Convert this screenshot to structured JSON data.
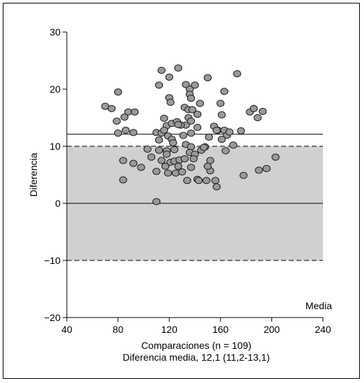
{
  "chart_data": {
    "type": "scatter",
    "xlabel": "Comparaciones (n = 109)",
    "xlabel_line2": "Diferencia media, 12,1 (11,2-13,1)",
    "ylabel": "Diferencia",
    "xlim": [
      40,
      240
    ],
    "ylim": [
      -20,
      30
    ],
    "xticks": [
      "40",
      "80",
      "120",
      "160",
      "200",
      "240"
    ],
    "yticks": [
      "30",
      "20",
      "10",
      "0",
      "−10",
      "−20"
    ],
    "mean_line_label": "Media",
    "mean_difference": 12.1,
    "shaded_band": [
      -10,
      10
    ],
    "zero_line": 0,
    "grid": false,
    "colors": {
      "point_fill": "#999999",
      "point_stroke": "#1a1a1a",
      "band_fill": "#d0d0d0"
    },
    "points": [
      [
        70,
        17.0
      ],
      [
        75,
        16.6
      ],
      [
        80,
        19.5
      ],
      [
        79,
        14.4
      ],
      [
        85,
        15.1
      ],
      [
        88,
        16.0
      ],
      [
        93,
        16.0
      ],
      [
        80,
        12.3
      ],
      [
        86,
        12.8
      ],
      [
        92,
        12.4
      ],
      [
        84,
        7.5
      ],
      [
        84,
        4.1
      ],
      [
        92,
        7.0
      ],
      [
        98,
        6.3
      ],
      [
        103,
        9.5
      ],
      [
        106,
        8.1
      ],
      [
        110,
        5.6
      ],
      [
        110,
        12.4
      ],
      [
        112,
        11.1
      ],
      [
        112,
        9.3
      ],
      [
        114,
        12.3
      ],
      [
        112,
        20.7
      ],
      [
        114,
        23.3
      ],
      [
        120,
        22.1
      ],
      [
        127,
        23.7
      ],
      [
        120,
        18.5
      ],
      [
        121,
        17.7
      ],
      [
        116,
        14.9
      ],
      [
        118,
        13.6
      ],
      [
        122,
        14.0
      ],
      [
        126,
        14.3
      ],
      [
        116,
        12.8
      ],
      [
        119,
        11.8
      ],
      [
        122,
        11.2
      ],
      [
        118,
        9.2
      ],
      [
        114,
        7.5
      ],
      [
        117,
        6.5
      ],
      [
        121,
        7.2
      ],
      [
        124,
        7.4
      ],
      [
        127,
        6.5
      ],
      [
        128,
        7.6
      ],
      [
        125,
        5.3
      ],
      [
        119,
        5.3
      ],
      [
        130,
        5.5
      ],
      [
        132,
        7.8
      ],
      [
        131,
        11.9
      ],
      [
        133,
        13.7
      ],
      [
        129,
        13.7
      ],
      [
        132,
        16.8
      ],
      [
        135,
        16.4
      ],
      [
        135,
        15.0
      ],
      [
        137,
        14.4
      ],
      [
        138,
        16.4
      ],
      [
        142,
        15.6
      ],
      [
        133,
        20.8
      ],
      [
        136,
        20.0
      ],
      [
        136,
        19.1
      ],
      [
        137,
        18.4
      ],
      [
        140,
        20.7
      ],
      [
        150,
        22.0
      ],
      [
        144,
        17.5
      ],
      [
        142,
        13.3
      ],
      [
        137,
        12.3
      ],
      [
        133,
        10.3
      ],
      [
        137,
        9.9
      ],
      [
        136,
        8.9
      ],
      [
        140,
        8.6
      ],
      [
        145,
        9.3
      ],
      [
        148,
        9.9
      ],
      [
        147,
        9.8
      ],
      [
        139,
        7.8
      ],
      [
        137,
        6.3
      ],
      [
        134,
        4.0
      ],
      [
        142,
        4.2
      ],
      [
        149,
        4.0
      ],
      [
        152,
        5.7
      ],
      [
        152,
        7.5
      ],
      [
        156,
        4.0
      ],
      [
        157,
        2.9
      ],
      [
        151,
        11.6
      ],
      [
        155,
        13.5
      ],
      [
        158,
        12.8
      ],
      [
        161,
        15.5
      ],
      [
        160,
        17.5
      ],
      [
        163,
        19.6
      ],
      [
        163,
        12.8
      ],
      [
        165,
        11.9
      ],
      [
        161,
        11.2
      ],
      [
        164,
        9.2
      ],
      [
        170,
        10.2
      ],
      [
        173,
        22.7
      ],
      [
        176,
        12.7
      ],
      [
        178,
        4.9
      ],
      [
        183,
        16.0
      ],
      [
        186,
        16.6
      ],
      [
        189,
        15.0
      ],
      [
        193,
        16.1
      ],
      [
        190,
        5.8
      ],
      [
        196,
        6.1
      ],
      [
        203,
        8.1
      ],
      [
        157,
        12.8
      ],
      [
        167,
        12.5
      ],
      [
        150,
        6.5
      ],
      [
        124,
        9.4
      ],
      [
        118,
        8.6
      ],
      [
        110,
        0.3
      ],
      [
        143,
        4.0
      ],
      [
        127,
        13.8
      ],
      [
        123,
        10.6
      ]
    ]
  }
}
